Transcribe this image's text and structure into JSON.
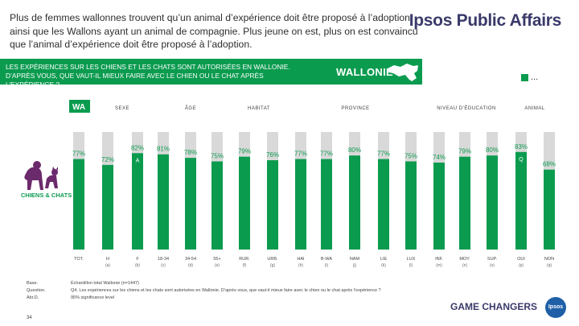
{
  "header": {
    "title": "Plus de femmes wallonnes trouvent qu’un animal d’expérience doit être proposé à l’adoption, ainsi que les Wallons ayant un animal de compagnie. Plus jeune on est, plus on est convaincu que l’animal d’expérience doit être proposé à l’adoption.",
    "brand": "Ipsos Public Affairs"
  },
  "banner": {
    "text": "LES EXPÉRIENCES SUR LES CHIENS ET LES CHATS SONT AUTORISÉES EN WALLONIE. D’APRÈS VOUS, QUE VAUT-IL MIEUX FAIRE AVEC LE CHIEN OU LE CHAT APRÈS L’EXPÉRIENCE ?",
    "region": "WALLONIE"
  },
  "legend": {
    "label": "..."
  },
  "pets_label": "CHIENS & CHATS",
  "footer": {
    "left_lines": [
      "Base.",
      "Question.",
      "Abr.D."
    ],
    "main_lines": [
      "Échantillon total Wallonie (n=1447)",
      "Q4. Les expériences sur les chiens et les chats sont autorisées en Wallonie. D’après vous, que vaut-il mieux faire avec le chien ou le chat après l’expérience ?",
      "95% significance level"
    ],
    "page": "34",
    "tagline": "GAME CHANGERS",
    "logo": "Ipsos"
  },
  "colors": {
    "bar": "#0b9b4f",
    "track": "#d9d9d9",
    "banner": "#0b9b4f"
  },
  "chart_data": {
    "type": "bar",
    "title": "",
    "ylim": [
      0,
      100
    ],
    "groups": [
      {
        "label": "WA",
        "highlight": true
      },
      {
        "label": "SEXE"
      },
      {
        "label": "ÂGE"
      },
      {
        "label": "HABITAT"
      },
      {
        "label": "PROVINCE"
      },
      {
        "label": "NIVEAU D’ÉDUCATION"
      },
      {
        "label": "ANIMAL"
      }
    ],
    "categories": [
      "TOT.",
      "H",
      "F",
      "18-34",
      "34-54",
      "55+",
      "RUR.",
      "URB.",
      "HAI",
      "B-WA",
      "NAM",
      "LIE",
      "LUX",
      "INF.",
      "MOY.",
      "SUP.",
      "OUI",
      "NON"
    ],
    "bases": [
      "",
      "(a)",
      "(b)",
      "(c)",
      "(d)",
      "(e)",
      "(f)",
      "(g)",
      "(h)",
      "(i)",
      "(j)",
      "(k)",
      "(l)",
      "(m)",
      "(n)",
      "(o)",
      "(p)",
      "(q)"
    ],
    "values": [
      77,
      72,
      82,
      81,
      78,
      75,
      79,
      76,
      77,
      77,
      80,
      77,
      75,
      74,
      79,
      80,
      83,
      68
    ],
    "value_labels": [
      "77%",
      "72%",
      "82%",
      "81%",
      "78%",
      "75%",
      "79%",
      "76%",
      "77%",
      "77%",
      "80%",
      "77%",
      "75%",
      "74%",
      "79%",
      "80%",
      "83%",
      "68%"
    ],
    "sig_letters": [
      "",
      "",
      "A",
      "",
      "",
      "",
      "",
      "",
      "",
      "",
      "",
      "",
      "",
      "",
      "",
      "",
      "Q",
      ""
    ]
  }
}
